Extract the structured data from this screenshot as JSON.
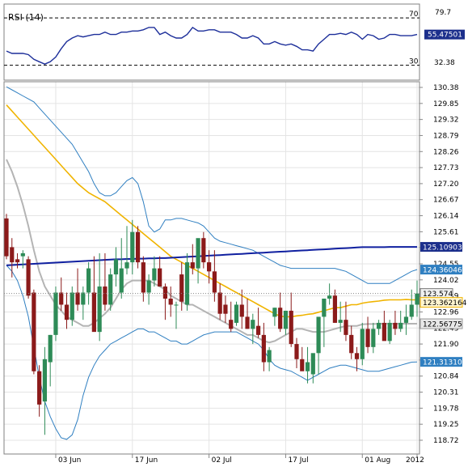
{
  "colors": {
    "up": "#2e8b57",
    "down": "#8b1a1a",
    "sma_yellow": "#f0b400",
    "sma_gray": "#b4b4b4",
    "long_ma_navy": "#1020a0",
    "bollinger_blue": "#2f7fc1",
    "rsi_line": "#1d2f9a",
    "last_price_bg": "#f0f0f0",
    "navy_badge": "#1c2f8c",
    "blue_badge": "#2f7fc1",
    "yellow_badge": "#fff5d0",
    "gray_badge": "#e8e8e8"
  },
  "chart_data": [
    {
      "type": "line",
      "title": "RSI (14)",
      "levels": [
        70,
        30
      ],
      "level_labels": [
        "70",
        "30"
      ],
      "ylim": [
        19.5,
        79.7
      ],
      "tick_labels": [
        "79.7",
        "32.38"
      ],
      "current_value": "55.47501",
      "grid": false,
      "series": [
        {
          "name": "RSI (14)",
          "values": [
            42,
            40,
            40,
            40,
            39,
            35,
            33,
            31,
            33,
            37,
            44,
            50,
            53,
            55,
            54,
            55,
            56,
            56,
            58,
            56,
            56,
            58,
            58,
            59,
            59,
            60,
            62,
            62,
            56,
            58,
            55,
            53,
            53,
            56,
            62,
            59,
            59,
            60,
            60,
            58,
            58,
            58,
            56,
            53,
            53,
            55,
            53,
            48,
            48,
            50,
            48,
            47,
            48,
            46,
            43,
            43,
            42,
            48,
            52,
            56,
            56,
            57,
            56,
            58,
            56,
            52,
            56,
            55,
            52,
            53,
            56,
            56,
            55,
            55,
            55,
            56
          ]
        }
      ]
    },
    {
      "type": "candlestick",
      "ylim": [
        118.3,
        130.6
      ],
      "y_tick_labels": [
        "130.38",
        "129.85",
        "129.32",
        "128.79",
        "128.26",
        "127.73",
        "127.20",
        "126.67",
        "126.14",
        "125.61",
        "125.09",
        "124.55",
        "124.02",
        "123.49",
        "122.96",
        "122.43",
        "121.90",
        "121.37",
        "120.84",
        "120.31",
        "119.78",
        "119.25",
        "118.72"
      ],
      "x_tick_labels": [
        "03 Jun",
        "17 Jun",
        "02 Jul",
        "17 Jul",
        "01 Aug",
        "2012"
      ],
      "x_tick_index": [
        9,
        23,
        37,
        51,
        65,
        75
      ],
      "value_labels": [
        "125.109035",
        "124.360469",
        "123.574",
        "123.362164",
        "122.56775",
        "121.313106"
      ],
      "grid": true,
      "candles": {
        "open": [
          126.05,
          125.1,
          124.7,
          124.8,
          124.7,
          123.6,
          121.0,
          120.0,
          121.3,
          122.2,
          123.6,
          123.2,
          122.7,
          123.6,
          123.2,
          123.6,
          123.6,
          122.3,
          123.8,
          123.2,
          124.2,
          123.6,
          124.4,
          124.6,
          125.6,
          124.6,
          123.6,
          124.0,
          124.4,
          123.8,
          123.4,
          123.2,
          124.2,
          123.2,
          124.6,
          124.4,
          125.4,
          124.6,
          124.3,
          123.6,
          123.2,
          122.7,
          122.6,
          123.2,
          122.8,
          122.4,
          122.5,
          122.2,
          121.3,
          122.8,
          123.1,
          122.4,
          123.0,
          121.9,
          121.4,
          121.0,
          120.9,
          121.6,
          122.8,
          123.4,
          123.5,
          122.6,
          122.7,
          122.2,
          121.6,
          121.4,
          122.4,
          121.8,
          122.4,
          122.6,
          122.0,
          122.6,
          122.4,
          122.6,
          122.8,
          123.2
        ],
        "high": [
          126.2,
          125.4,
          124.9,
          125.0,
          124.8,
          123.7,
          121.2,
          121.8,
          122.2,
          123.8,
          124.1,
          123.6,
          123.8,
          124.4,
          123.8,
          124.6,
          124.8,
          124.9,
          124.9,
          124.4,
          125.1,
          125.4,
          125.8,
          126.0,
          125.8,
          124.8,
          124.2,
          124.8,
          124.8,
          123.9,
          123.8,
          123.3,
          124.6,
          124.9,
          125.2,
          125.2,
          125.6,
          125.0,
          125.0,
          123.9,
          123.5,
          123.3,
          123.3,
          123.7,
          123.4,
          122.9,
          123.1,
          122.6,
          121.8,
          123.1,
          123.6,
          123.0,
          123.6,
          122.1,
          121.8,
          121.8,
          121.0,
          122.0,
          123.2,
          123.9,
          123.7,
          123.3,
          123.3,
          122.5,
          121.8,
          122.6,
          122.8,
          122.6,
          122.7,
          123.0,
          122.7,
          123.0,
          123.0,
          123.2,
          123.7,
          124.0
        ],
        "low": [
          124.7,
          124.1,
          124.4,
          124.4,
          123.4,
          120.9,
          119.5,
          118.9,
          120.5,
          122.0,
          123.0,
          122.4,
          122.5,
          123.0,
          122.7,
          123.2,
          123.0,
          122.0,
          123.0,
          123.0,
          123.8,
          123.4,
          124.2,
          124.2,
          124.4,
          123.3,
          123.2,
          123.8,
          123.8,
          122.7,
          122.8,
          122.4,
          123.0,
          123.0,
          124.2,
          123.9,
          124.4,
          123.9,
          123.3,
          122.7,
          122.6,
          122.3,
          122.5,
          122.4,
          122.4,
          121.9,
          122.1,
          121.0,
          121.0,
          122.5,
          122.3,
          122.2,
          121.8,
          121.1,
          121.1,
          120.6,
          120.6,
          120.9,
          121.8,
          123.2,
          122.6,
          122.3,
          122.0,
          121.4,
          121.0,
          121.2,
          121.6,
          121.6,
          122.2,
          122.2,
          121.9,
          122.2,
          122.3,
          122.2,
          122.7,
          122.8
        ],
        "close": [
          124.8,
          124.6,
          124.6,
          124.9,
          123.5,
          121.0,
          119.9,
          121.4,
          122.2,
          123.6,
          123.2,
          122.7,
          123.6,
          123.2,
          123.6,
          124.4,
          122.3,
          123.8,
          123.2,
          124.2,
          124.7,
          124.4,
          124.6,
          125.6,
          124.6,
          123.6,
          124.0,
          124.4,
          123.8,
          123.4,
          123.2,
          123.2,
          123.3,
          124.6,
          124.4,
          125.4,
          124.6,
          124.3,
          123.6,
          122.9,
          122.9,
          122.4,
          123.2,
          122.8,
          122.4,
          122.7,
          122.2,
          121.3,
          121.7,
          123.1,
          122.4,
          123.0,
          121.9,
          121.4,
          121.0,
          121.3,
          121.6,
          122.8,
          123.4,
          123.5,
          122.6,
          122.7,
          122.2,
          121.6,
          121.4,
          122.4,
          121.8,
          122.4,
          122.6,
          122.0,
          122.6,
          122.4,
          122.6,
          122.8,
          123.2,
          123.57
        ]
      },
      "series": [
        {
          "values": [
            129.8,
            129.6,
            129.4,
            129.2,
            129.0,
            128.8,
            128.6,
            128.4,
            128.2,
            128.0,
            127.8,
            127.6,
            127.4,
            127.2,
            127.05,
            126.9,
            126.8,
            126.7,
            126.6,
            126.45,
            126.3,
            126.15,
            126.0,
            125.85,
            125.7,
            125.55,
            125.4,
            125.25,
            125.1,
            124.95,
            124.8,
            124.7,
            124.6,
            124.5,
            124.4,
            124.3,
            124.2,
            124.1,
            124.0,
            123.9,
            123.8,
            123.7,
            123.6,
            123.5,
            123.4,
            123.3,
            123.2,
            123.1,
            123.0,
            122.9,
            122.82,
            122.8,
            122.8,
            122.83,
            122.85,
            122.88,
            122.9,
            122.95,
            123.0,
            123.05,
            123.1,
            123.1,
            123.15,
            123.2,
            123.2,
            123.25,
            123.28,
            123.3,
            123.32,
            123.35,
            123.36,
            123.36,
            123.36,
            123.37,
            123.36,
            123.36
          ]
        },
        {
          "values": [
            128.0,
            127.6,
            127.1,
            126.5,
            125.8,
            125.0,
            124.3,
            123.8,
            123.5,
            123.2,
            123.0,
            122.8,
            122.7,
            122.6,
            122.5,
            122.5,
            122.6,
            122.75,
            122.9,
            123.1,
            123.4,
            123.7,
            123.9,
            124.0,
            124.0,
            124.0,
            124.0,
            123.9,
            123.8,
            123.7,
            123.5,
            123.4,
            123.3,
            123.2,
            123.2,
            123.1,
            123.0,
            122.9,
            122.8,
            122.7,
            122.6,
            122.5,
            122.4,
            122.3,
            122.2,
            122.2,
            122.1,
            122.0,
            121.95,
            122.0,
            122.1,
            122.2,
            122.3,
            122.4,
            122.4,
            122.35,
            122.3,
            122.3,
            122.3,
            122.35,
            122.4,
            122.45,
            122.5,
            122.5,
            122.5,
            122.55,
            122.56,
            122.56,
            122.57,
            122.57,
            122.57,
            122.57,
            122.57,
            122.57,
            122.57,
            122.57
          ]
        },
        {
          "values": [
            124.5,
            124.51,
            124.52,
            124.53,
            124.54,
            124.55,
            124.56,
            124.57,
            124.58,
            124.59,
            124.6,
            124.61,
            124.62,
            124.63,
            124.64,
            124.65,
            124.66,
            124.67,
            124.68,
            124.69,
            124.7,
            124.7,
            124.71,
            124.71,
            124.72,
            124.72,
            124.73,
            124.73,
            124.74,
            124.74,
            124.75,
            124.76,
            124.77,
            124.78,
            124.79,
            124.8,
            124.81,
            124.82,
            124.83,
            124.84,
            124.85,
            124.86,
            124.87,
            124.88,
            124.89,
            124.9,
            124.91,
            124.92,
            124.93,
            124.94,
            124.95,
            124.96,
            124.97,
            124.98,
            124.99,
            125.0,
            125.01,
            125.02,
            125.03,
            125.04,
            125.05,
            125.06,
            125.07,
            125.08,
            125.09,
            125.1,
            125.1,
            125.1,
            125.1,
            125.1,
            125.11,
            125.11,
            125.11,
            125.11,
            125.11,
            125.11
          ]
        },
        {
          "values": [
            130.4,
            130.3,
            130.2,
            130.1,
            130.0,
            129.9,
            129.7,
            129.5,
            129.3,
            129.1,
            128.9,
            128.7,
            128.5,
            128.2,
            127.9,
            127.6,
            127.2,
            126.9,
            126.8,
            126.8,
            126.9,
            127.1,
            127.3,
            127.4,
            127.2,
            126.6,
            125.8,
            125.6,
            125.7,
            126.0,
            126.0,
            126.05,
            126.05,
            126.0,
            125.95,
            125.9,
            125.8,
            125.6,
            125.4,
            125.3,
            125.25,
            125.2,
            125.15,
            125.1,
            125.05,
            125.0,
            124.9,
            124.8,
            124.7,
            124.6,
            124.5,
            124.45,
            124.4,
            124.4,
            124.4,
            124.4,
            124.4,
            124.4,
            124.4,
            124.4,
            124.4,
            124.35,
            124.3,
            124.2,
            124.1,
            124.0,
            123.9,
            123.9,
            123.9,
            123.9,
            123.9,
            124.0,
            124.1,
            124.2,
            124.3,
            124.36
          ]
        },
        {
          "values": [
            124.5,
            124.3,
            124.0,
            123.5,
            122.8,
            121.8,
            120.8,
            120.0,
            119.5,
            119.1,
            118.8,
            118.75,
            118.9,
            119.4,
            120.2,
            120.8,
            121.2,
            121.5,
            121.7,
            121.9,
            122.0,
            122.1,
            122.2,
            122.3,
            122.4,
            122.4,
            122.3,
            122.3,
            122.2,
            122.1,
            122.0,
            122.0,
            121.9,
            121.9,
            122.0,
            122.1,
            122.2,
            122.25,
            122.3,
            122.3,
            122.3,
            122.3,
            122.3,
            122.2,
            122.1,
            122.0,
            121.9,
            121.7,
            121.4,
            121.2,
            121.1,
            121.05,
            121.0,
            120.9,
            120.8,
            120.7,
            120.8,
            120.9,
            121.0,
            121.1,
            121.15,
            121.2,
            121.2,
            121.15,
            121.1,
            121.05,
            121.0,
            121.0,
            121.0,
            121.05,
            121.1,
            121.15,
            121.2,
            121.25,
            121.3,
            121.31
          ]
        }
      ]
    }
  ]
}
